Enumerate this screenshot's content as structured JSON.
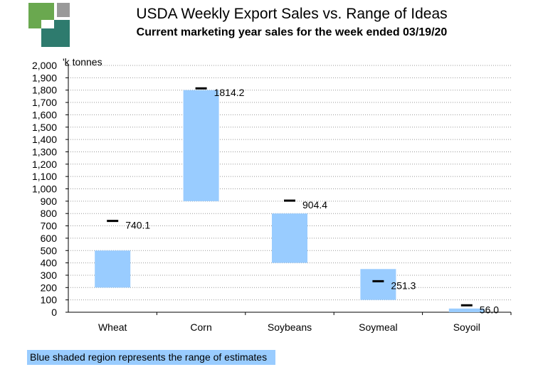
{
  "header": {
    "title": "USDA Weekly Export Sales vs. Range of Ideas",
    "subtitle": "Current marketing year sales for the week ended 03/19/20"
  },
  "logo": {
    "icon": "company-logo-icon",
    "colors": [
      "#6aa84f",
      "#999999",
      "#2e7b6e"
    ]
  },
  "chart_data": {
    "type": "bar",
    "subtype": "floating-range-with-actual-markers",
    "title": "USDA Weekly Export Sales vs. Range of Ideas",
    "subtitle": "Current marketing year sales for the week ended 03/19/20",
    "ylabel": "'k tonnes",
    "ylim": [
      0,
      2000
    ],
    "ytick_step": 100,
    "grid": true,
    "categories": [
      "Wheat",
      "Corn",
      "Soybeans",
      "Soymeal",
      "Soyoil"
    ],
    "ranges": [
      {
        "low": 200,
        "high": 500
      },
      {
        "low": 900,
        "high": 1800
      },
      {
        "low": 400,
        "high": 800
      },
      {
        "low": 100,
        "high": 350
      },
      {
        "low": 0,
        "high": 30
      }
    ],
    "actual": [
      740.1,
      1814.2,
      904.4,
      251.3,
      56.0
    ],
    "actual_labels": [
      "740.1",
      "1814.2",
      "904.4",
      "251.3",
      "56.0"
    ],
    "range_color": "#99ccff",
    "marker_color": "#000000",
    "grid_color": "#999999"
  },
  "footnote": "Blue shaded region represents the range of estimates"
}
